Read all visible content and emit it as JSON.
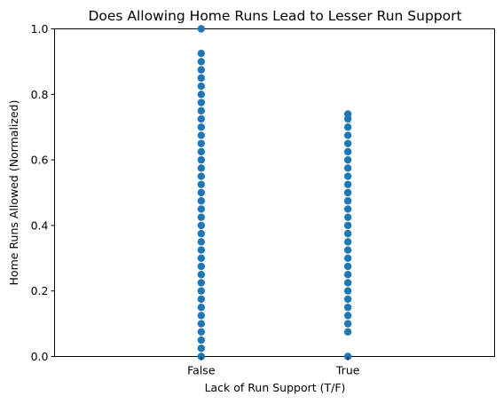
{
  "chart_data": {
    "type": "scatter",
    "title": "Does Allowing Home Runs Lead to Lesser Run Support",
    "xlabel": "Lack of Run Support (T/F)",
    "ylabel": "Home Runs Allowed (Normalized)",
    "categories": [
      "False",
      "True"
    ],
    "xlim": [
      -1,
      2
    ],
    "ylim": [
      0,
      1
    ],
    "yticks": [
      "0.0",
      "0.2",
      "0.4",
      "0.6",
      "0.8",
      "1.0"
    ],
    "grid": false,
    "marker_color": "#1f77b4",
    "series": [
      {
        "category": "False",
        "values": [
          0.0,
          0.025,
          0.05,
          0.075,
          0.1,
          0.125,
          0.15,
          0.175,
          0.2,
          0.225,
          0.25,
          0.275,
          0.3,
          0.325,
          0.35,
          0.375,
          0.4,
          0.425,
          0.45,
          0.475,
          0.5,
          0.525,
          0.55,
          0.575,
          0.6,
          0.625,
          0.65,
          0.675,
          0.7,
          0.725,
          0.75,
          0.775,
          0.8,
          0.825,
          0.85,
          0.875,
          0.9,
          0.925,
          1.0
        ]
      },
      {
        "category": "True",
        "values": [
          0.0,
          0.075,
          0.1,
          0.125,
          0.15,
          0.175,
          0.2,
          0.225,
          0.25,
          0.275,
          0.3,
          0.325,
          0.35,
          0.375,
          0.4,
          0.425,
          0.45,
          0.475,
          0.5,
          0.525,
          0.55,
          0.575,
          0.6,
          0.625,
          0.65,
          0.675,
          0.7,
          0.725,
          0.74
        ]
      }
    ]
  }
}
